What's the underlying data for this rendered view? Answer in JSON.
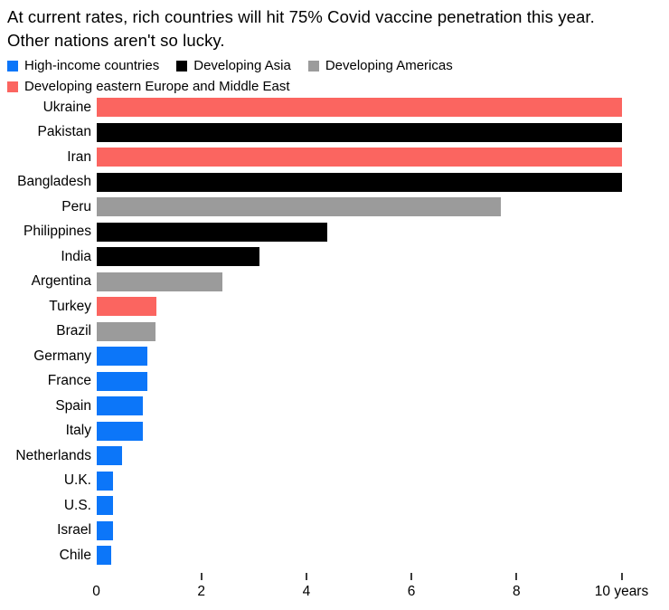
{
  "header": {
    "title_lines": [
      "At current rates, rich countries will hit 75% Covid vaccine penetration this year.",
      "Other nations aren't so lucky."
    ]
  },
  "legend": {
    "rows": [
      [
        {
          "label": "High-income countries",
          "color": "#0C76F9"
        },
        {
          "label": "Developing Asia",
          "color": "#000000"
        },
        {
          "label": "Developing Americas",
          "color": "#9B9B9B"
        }
      ],
      [
        {
          "label": "Developing eastern Europe and Middle East",
          "color": "#FB6560"
        }
      ]
    ]
  },
  "colors": {
    "high_income_blue": "#0C76F9",
    "developing_asia_black": "#000000",
    "developing_americas_gray": "#9B9B9B",
    "developing_eeme_red": "#FB6560",
    "text": "#000000",
    "tick": "#3C3C3C",
    "background": "#FFFFFF"
  },
  "chart_data": {
    "type": "bar",
    "orientation": "horizontal",
    "title": "At current rates, rich countries will hit 75% Covid vaccine penetration this year. Other nations aren't so lucky.",
    "xlabel": "years",
    "ylabel": "",
    "xlim": [
      0,
      10
    ],
    "grid": false,
    "legend_position": "top",
    "x_ticks": [
      {
        "value": 0,
        "label": "0"
      },
      {
        "value": 2,
        "label": "2"
      },
      {
        "value": 4,
        "label": "4"
      },
      {
        "value": 6,
        "label": "6"
      },
      {
        "value": 8,
        "label": "8"
      },
      {
        "value": 10,
        "label": "10 years"
      }
    ],
    "rows": [
      {
        "label": "Ukraine",
        "value": 10,
        "category": "Developing eastern Europe and Middle East",
        "color": "#FB6560"
      },
      {
        "label": "Pakistan",
        "value": 10,
        "category": "Developing Asia",
        "color": "#000000"
      },
      {
        "label": "Iran",
        "value": 10,
        "category": "Developing eastern Europe and Middle East",
        "color": "#FB6560"
      },
      {
        "label": "Bangladesh",
        "value": 10,
        "category": "Developing Asia",
        "color": "#000000"
      },
      {
        "label": "Peru",
        "value": 7.7,
        "category": "Developing Americas",
        "color": "#9B9B9B"
      },
      {
        "label": "Philippines",
        "value": 4.4,
        "category": "Developing Asia",
        "color": "#000000"
      },
      {
        "label": "India",
        "value": 3.1,
        "category": "Developing Asia",
        "color": "#000000"
      },
      {
        "label": "Argentina",
        "value": 2.4,
        "category": "Developing Americas",
        "color": "#9B9B9B"
      },
      {
        "label": "Turkey",
        "value": 1.15,
        "category": "Developing eastern Europe and Middle East",
        "color": "#FB6560"
      },
      {
        "label": "Brazil",
        "value": 1.13,
        "category": "Developing Americas",
        "color": "#9B9B9B"
      },
      {
        "label": "Germany",
        "value": 0.97,
        "category": "High-income countries",
        "color": "#0C76F9"
      },
      {
        "label": "France",
        "value": 0.97,
        "category": "High-income countries",
        "color": "#0C76F9"
      },
      {
        "label": "Spain",
        "value": 0.89,
        "category": "High-income countries",
        "color": "#0C76F9"
      },
      {
        "label": "Italy",
        "value": 0.89,
        "category": "High-income countries",
        "color": "#0C76F9"
      },
      {
        "label": "Netherlands",
        "value": 0.49,
        "category": "High-income countries",
        "color": "#0C76F9"
      },
      {
        "label": "U.K.",
        "value": 0.32,
        "category": "High-income countries",
        "color": "#0C76F9"
      },
      {
        "label": "U.S.",
        "value": 0.32,
        "category": "High-income countries",
        "color": "#0C76F9"
      },
      {
        "label": "Israel",
        "value": 0.32,
        "category": "High-income countries",
        "color": "#0C76F9"
      },
      {
        "label": "Chile",
        "value": 0.28,
        "category": "High-income countries",
        "color": "#0C76F9"
      }
    ]
  }
}
